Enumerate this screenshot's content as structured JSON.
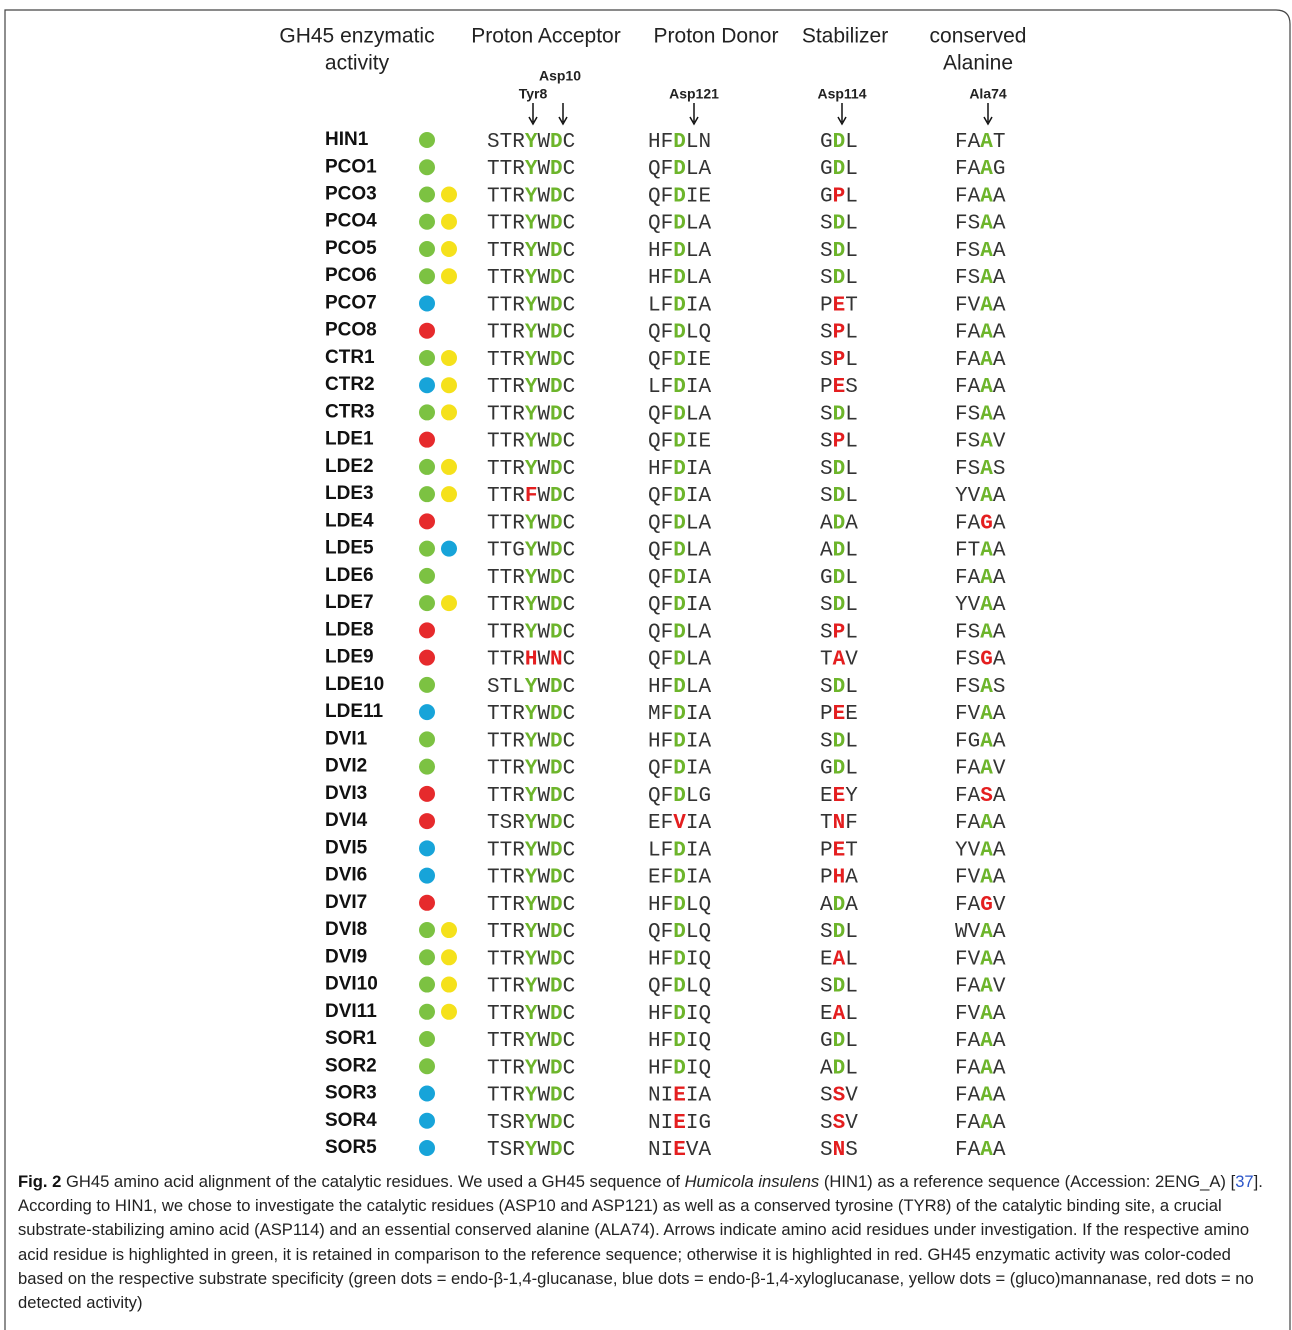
{
  "columns": {
    "activity": [
      "GH45 enzymatic",
      "activity"
    ],
    "acceptor": [
      "Proton Acceptor"
    ],
    "donor": [
      "Proton Donor"
    ],
    "stabilizer": [
      "Stabilizer"
    ],
    "alanine": [
      "conserved",
      "Alanine"
    ]
  },
  "residues": {
    "tyr8": "Tyr8",
    "asp10": "Asp10",
    "asp121": "Asp121",
    "asp114": "Asp114",
    "ala74": "Ala74"
  },
  "rows": [
    {
      "name": "HIN1",
      "activity": [
        "green"
      ],
      "acceptor": "STRYWDC",
      "acceptor_mask": "...g.g.",
      "donor": "HFDLN",
      "donor_mask": "..g..",
      "stabilizer": "GDL",
      "stabilizer_mask": ".g.",
      "alanine": "FAAT",
      "alanine_mask": "..g."
    },
    {
      "name": "PCO1",
      "activity": [
        "green"
      ],
      "acceptor": "TTRYWDC",
      "acceptor_mask": "...g.g.",
      "donor": "QFDLA",
      "donor_mask": "..g..",
      "stabilizer": "GDL",
      "stabilizer_mask": ".g.",
      "alanine": "FAAG",
      "alanine_mask": "..g."
    },
    {
      "name": "PCO3",
      "activity": [
        "green",
        "yellow"
      ],
      "acceptor": "TTRYWDC",
      "acceptor_mask": "...g.g.",
      "donor": "QFDIE",
      "donor_mask": "..g..",
      "stabilizer": "GPL",
      "stabilizer_mask": ".r.",
      "alanine": "FAAA",
      "alanine_mask": "..g."
    },
    {
      "name": "PCO4",
      "activity": [
        "green",
        "yellow"
      ],
      "acceptor": "TTRYWDC",
      "acceptor_mask": "...g.g.",
      "donor": "QFDLA",
      "donor_mask": "..g..",
      "stabilizer": "SDL",
      "stabilizer_mask": ".g.",
      "alanine": "FSAA",
      "alanine_mask": "..g."
    },
    {
      "name": "PCO5",
      "activity": [
        "green",
        "yellow"
      ],
      "acceptor": "TTRYWDC",
      "acceptor_mask": "...g.g.",
      "donor": "HFDLA",
      "donor_mask": "..g..",
      "stabilizer": "SDL",
      "stabilizer_mask": ".g.",
      "alanine": "FSAA",
      "alanine_mask": "..g."
    },
    {
      "name": "PCO6",
      "activity": [
        "green",
        "yellow"
      ],
      "acceptor": "TTRYWDC",
      "acceptor_mask": "...g.g.",
      "donor": "HFDLA",
      "donor_mask": "..g..",
      "stabilizer": "SDL",
      "stabilizer_mask": ".g.",
      "alanine": "FSAA",
      "alanine_mask": "..g."
    },
    {
      "name": "PCO7",
      "activity": [
        "blue"
      ],
      "acceptor": "TTRYWDC",
      "acceptor_mask": "...g.g.",
      "donor": "LFDIA",
      "donor_mask": "..g..",
      "stabilizer": "PET",
      "stabilizer_mask": ".r.",
      "alanine": "FVAA",
      "alanine_mask": "..g."
    },
    {
      "name": "PCO8",
      "activity": [
        "red"
      ],
      "acceptor": "TTRYWDC",
      "acceptor_mask": "...g.g.",
      "donor": "QFDLQ",
      "donor_mask": "..g..",
      "stabilizer": "SPL",
      "stabilizer_mask": ".r.",
      "alanine": "FAAA",
      "alanine_mask": "..g."
    },
    {
      "name": "CTR1",
      "activity": [
        "green",
        "yellow"
      ],
      "acceptor": "TTRYWDC",
      "acceptor_mask": "...g.g.",
      "donor": "QFDIE",
      "donor_mask": "..g..",
      "stabilizer": "SPL",
      "stabilizer_mask": ".r.",
      "alanine": "FAAA",
      "alanine_mask": "..g."
    },
    {
      "name": "CTR2",
      "activity": [
        "blue",
        "yellow"
      ],
      "acceptor": "TTRYWDC",
      "acceptor_mask": "...g.g.",
      "donor": "LFDIA",
      "donor_mask": "..g..",
      "stabilizer": "PES",
      "stabilizer_mask": ".r.",
      "alanine": "FAAA",
      "alanine_mask": "..g."
    },
    {
      "name": "CTR3",
      "activity": [
        "green",
        "yellow"
      ],
      "acceptor": "TTRYWDC",
      "acceptor_mask": "...g.g.",
      "donor": "QFDLA",
      "donor_mask": "..g..",
      "stabilizer": "SDL",
      "stabilizer_mask": ".g.",
      "alanine": "FSAA",
      "alanine_mask": "..g."
    },
    {
      "name": "LDE1",
      "activity": [
        "red"
      ],
      "acceptor": "TTRYWDC",
      "acceptor_mask": "...g.g.",
      "donor": "QFDIE",
      "donor_mask": "..g..",
      "stabilizer": "SPL",
      "stabilizer_mask": ".r.",
      "alanine": "FSAV",
      "alanine_mask": "..g."
    },
    {
      "name": "LDE2",
      "activity": [
        "green",
        "yellow"
      ],
      "acceptor": "TTRYWDC",
      "acceptor_mask": "...g.g.",
      "donor": "HFDIA",
      "donor_mask": "..g..",
      "stabilizer": "SDL",
      "stabilizer_mask": ".g.",
      "alanine": "FSAS",
      "alanine_mask": "..g."
    },
    {
      "name": "LDE3",
      "activity": [
        "green",
        "yellow"
      ],
      "acceptor": "TTRFWDC",
      "acceptor_mask": "...r.g.",
      "donor": "QFDIA",
      "donor_mask": "..g..",
      "stabilizer": "SDL",
      "stabilizer_mask": ".g.",
      "alanine": "YVAA",
      "alanine_mask": "..g."
    },
    {
      "name": "LDE4",
      "activity": [
        "red"
      ],
      "acceptor": "TTRYWDC",
      "acceptor_mask": "...g.g.",
      "donor": "QFDLA",
      "donor_mask": "..g..",
      "stabilizer": "ADA",
      "stabilizer_mask": ".g.",
      "alanine": "FAGA",
      "alanine_mask": "..r."
    },
    {
      "name": "LDE5",
      "activity": [
        "green",
        "blue"
      ],
      "acceptor": "TTGYWDC",
      "acceptor_mask": "...g.g.",
      "donor": "QFDLA",
      "donor_mask": "..g..",
      "stabilizer": "ADL",
      "stabilizer_mask": ".g.",
      "alanine": "FTAA",
      "alanine_mask": "..g."
    },
    {
      "name": "LDE6",
      "activity": [
        "green"
      ],
      "acceptor": "TTRYWDC",
      "acceptor_mask": "...g.g.",
      "donor": "QFDIA",
      "donor_mask": "..g..",
      "stabilizer": "GDL",
      "stabilizer_mask": ".g.",
      "alanine": "FAAA",
      "alanine_mask": "..g."
    },
    {
      "name": "LDE7",
      "activity": [
        "green",
        "yellow"
      ],
      "acceptor": "TTRYWDC",
      "acceptor_mask": "...g.g.",
      "donor": "QFDIA",
      "donor_mask": "..g..",
      "stabilizer": "SDL",
      "stabilizer_mask": ".g.",
      "alanine": "YVAA",
      "alanine_mask": "..g."
    },
    {
      "name": "LDE8",
      "activity": [
        "red"
      ],
      "acceptor": "TTRYWDC",
      "acceptor_mask": "...g.g.",
      "donor": "QFDLA",
      "donor_mask": "..g..",
      "stabilizer": "SPL",
      "stabilizer_mask": ".r.",
      "alanine": "FSAA",
      "alanine_mask": "..g."
    },
    {
      "name": "LDE9",
      "activity": [
        "red"
      ],
      "acceptor": "TTRHWNC",
      "acceptor_mask": "...r.r.",
      "donor": "QFDLA",
      "donor_mask": "..g..",
      "stabilizer": "TAV",
      "stabilizer_mask": ".r.",
      "alanine": "FSGA",
      "alanine_mask": "..r."
    },
    {
      "name": "LDE10",
      "activity": [
        "green"
      ],
      "acceptor": "STLYWDC",
      "acceptor_mask": "...g.g.",
      "donor": "HFDLA",
      "donor_mask": "..g..",
      "stabilizer": "SDL",
      "stabilizer_mask": ".g.",
      "alanine": "FSAS",
      "alanine_mask": "..g."
    },
    {
      "name": "LDE11",
      "activity": [
        "blue"
      ],
      "acceptor": "TTRYWDC",
      "acceptor_mask": "...g.g.",
      "donor": "MFDIA",
      "donor_mask": "..g..",
      "stabilizer": "PEE",
      "stabilizer_mask": ".r.",
      "alanine": "FVAA",
      "alanine_mask": "..g."
    },
    {
      "name": "DVI1",
      "activity": [
        "green"
      ],
      "acceptor": "TTRYWDC",
      "acceptor_mask": "...g.g.",
      "donor": "HFDIA",
      "donor_mask": "..g..",
      "stabilizer": "SDL",
      "stabilizer_mask": ".g.",
      "alanine": "FGAA",
      "alanine_mask": "..g."
    },
    {
      "name": "DVI2",
      "activity": [
        "green"
      ],
      "acceptor": "TTRYWDC",
      "acceptor_mask": "...g.g.",
      "donor": "QFDIA",
      "donor_mask": "..g..",
      "stabilizer": "GDL",
      "stabilizer_mask": ".g.",
      "alanine": "FAAV",
      "alanine_mask": "..g."
    },
    {
      "name": "DVI3",
      "activity": [
        "red"
      ],
      "acceptor": "TTRYWDC",
      "acceptor_mask": "...g.g.",
      "donor": "QFDLG",
      "donor_mask": "..g..",
      "stabilizer": "EEY",
      "stabilizer_mask": ".r.",
      "alanine": "FASA",
      "alanine_mask": "..r."
    },
    {
      "name": "DVI4",
      "activity": [
        "red"
      ],
      "acceptor": "TSRYWDC",
      "acceptor_mask": "...g.g.",
      "donor": "EFVIA",
      "donor_mask": "..r..",
      "stabilizer": "TNF",
      "stabilizer_mask": ".r.",
      "alanine": "FAAA",
      "alanine_mask": "..g."
    },
    {
      "name": "DVI5",
      "activity": [
        "blue"
      ],
      "acceptor": "TTRYWDC",
      "acceptor_mask": "...g.g.",
      "donor": "LFDIA",
      "donor_mask": "..g..",
      "stabilizer": "PET",
      "stabilizer_mask": ".r.",
      "alanine": "YVAA",
      "alanine_mask": "..g."
    },
    {
      "name": "DVI6",
      "activity": [
        "blue"
      ],
      "acceptor": "TTRYWDC",
      "acceptor_mask": "...g.g.",
      "donor": "EFDIA",
      "donor_mask": "..g..",
      "stabilizer": "PHA",
      "stabilizer_mask": ".r.",
      "alanine": "FVAA",
      "alanine_mask": "..g."
    },
    {
      "name": "DVI7",
      "activity": [
        "red"
      ],
      "acceptor": "TTRYWDC",
      "acceptor_mask": "...g.g.",
      "donor": "HFDLQ",
      "donor_mask": "..g..",
      "stabilizer": "ADA",
      "stabilizer_mask": ".g.",
      "alanine": "FAGV",
      "alanine_mask": "..r."
    },
    {
      "name": "DVI8",
      "activity": [
        "green",
        "yellow"
      ],
      "acceptor": "TTRYWDC",
      "acceptor_mask": "...g.g.",
      "donor": "QFDLQ",
      "donor_mask": "..g..",
      "stabilizer": "SDL",
      "stabilizer_mask": ".g.",
      "alanine": "WVAA",
      "alanine_mask": "..g."
    },
    {
      "name": "DVI9",
      "activity": [
        "green",
        "yellow"
      ],
      "acceptor": "TTRYWDC",
      "acceptor_mask": "...g.g.",
      "donor": "HFDIQ",
      "donor_mask": "..g..",
      "stabilizer": "EAL",
      "stabilizer_mask": ".r.",
      "alanine": "FVAA",
      "alanine_mask": "..g."
    },
    {
      "name": "DVI10",
      "activity": [
        "green",
        "yellow"
      ],
      "acceptor": "TTRYWDC",
      "acceptor_mask": "...g.g.",
      "donor": "QFDLQ",
      "donor_mask": "..g..",
      "stabilizer": "SDL",
      "stabilizer_mask": ".g.",
      "alanine": "FAAV",
      "alanine_mask": "..g."
    },
    {
      "name": "DVI11",
      "activity": [
        "green",
        "yellow"
      ],
      "acceptor": "TTRYWDC",
      "acceptor_mask": "...g.g.",
      "donor": "HFDIQ",
      "donor_mask": "..g..",
      "stabilizer": "EAL",
      "stabilizer_mask": ".r.",
      "alanine": "FVAA",
      "alanine_mask": "..g."
    },
    {
      "name": "SOR1",
      "activity": [
        "green"
      ],
      "acceptor": "TTRYWDC",
      "acceptor_mask": "...g.g.",
      "donor": "HFDIQ",
      "donor_mask": "..g..",
      "stabilizer": "GDL",
      "stabilizer_mask": ".g.",
      "alanine": "FAAA",
      "alanine_mask": "..g."
    },
    {
      "name": "SOR2",
      "activity": [
        "green"
      ],
      "acceptor": "TTRYWDC",
      "acceptor_mask": "...g.g.",
      "donor": "HFDIQ",
      "donor_mask": "..g..",
      "stabilizer": "ADL",
      "stabilizer_mask": ".g.",
      "alanine": "FAAA",
      "alanine_mask": "..g."
    },
    {
      "name": "SOR3",
      "activity": [
        "blue"
      ],
      "acceptor": "TTRYWDC",
      "acceptor_mask": "...g.g.",
      "donor": "NIEIA",
      "donor_mask": "..r..",
      "stabilizer": "SSV",
      "stabilizer_mask": ".r.",
      "alanine": "FAAA",
      "alanine_mask": "..g."
    },
    {
      "name": "SOR4",
      "activity": [
        "blue"
      ],
      "acceptor": "TSRYWDC",
      "acceptor_mask": "...g.g.",
      "donor": "NIEIG",
      "donor_mask": "..r..",
      "stabilizer": "SSV",
      "stabilizer_mask": ".r.",
      "alanine": "FAAA",
      "alanine_mask": "..g."
    },
    {
      "name": "SOR5",
      "activity": [
        "blue"
      ],
      "acceptor": "TSRYWDC",
      "acceptor_mask": "...g.g.",
      "donor": "NIEVA",
      "donor_mask": "..r..",
      "stabilizer": "SNS",
      "stabilizer_mask": ".r.",
      "alanine": "FAAA",
      "alanine_mask": "..g."
    }
  ],
  "caption": {
    "label": "Fig. 2",
    "text_1": " GH45 amino acid alignment of the catalytic residues. We used a GH45 sequence of ",
    "species": "Humicola insulens",
    "text_2": " (HIN1) as a reference sequence (Accession: 2ENG_A) [",
    "reference": "37",
    "text_3": "]. According to HIN1, we chose to investigate the catalytic residues (ASP10 and ASP121) as well as a conserved tyrosine (TYR8) of the catalytic binding site, a crucial substrate-stabilizing amino acid (ASP114) and an essential conserved alanine (ALA74). Arrows indicate amino acid residues under investigation. If the respective amino acid residue is highlighted in green, it is retained in comparison to the reference sequence; otherwise it is highlighted in red. GH45 enzymatic activity was color-coded based on the respective substrate specificity (green dots = endo-β-1,4-glucanase, blue dots = endo-β-1,4-xyloglucanase, yellow dots = (gluco)mannanase, red dots = no detected activity)"
  }
}
